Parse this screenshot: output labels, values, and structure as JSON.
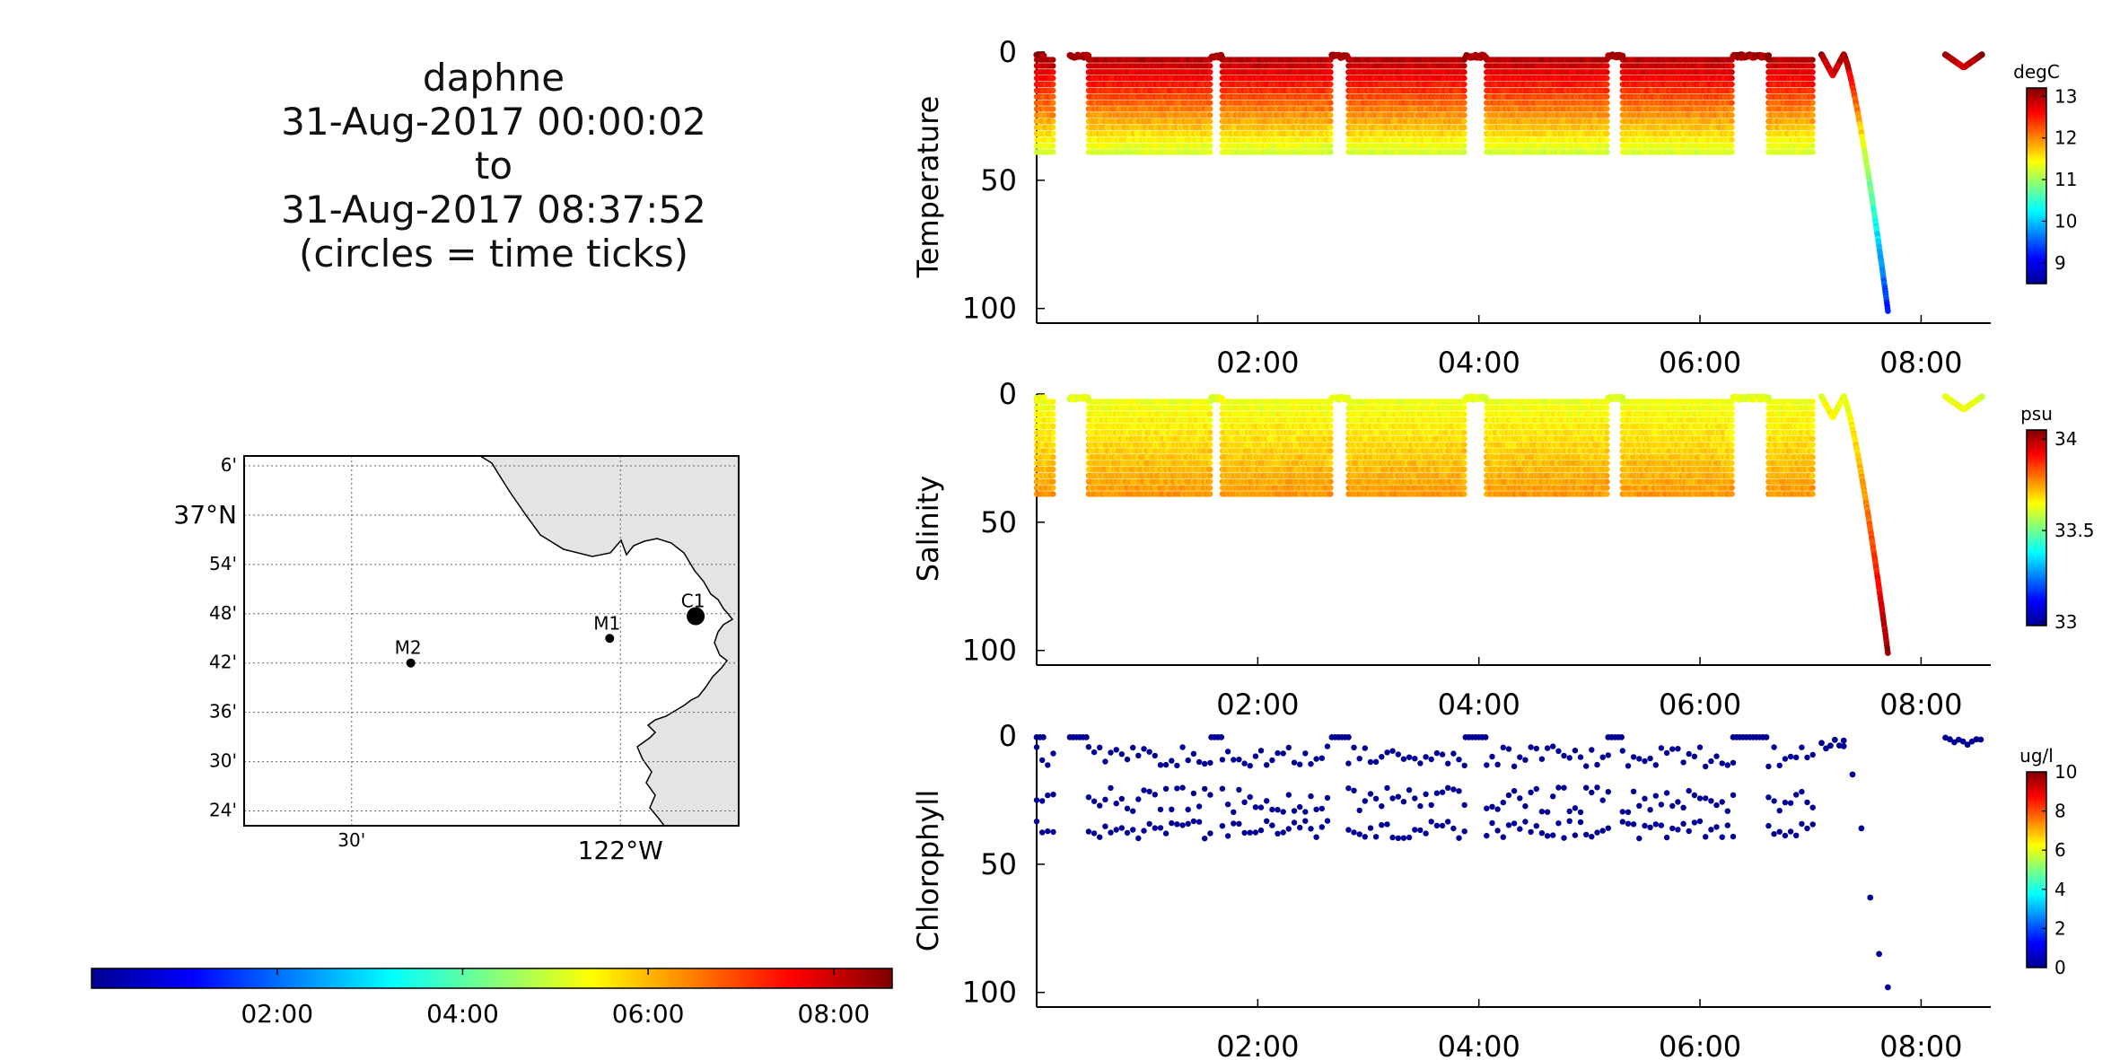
{
  "title": {
    "lines": [
      "daphne",
      "31-Aug-2017 00:00:02",
      "to",
      "31-Aug-2017 08:37:52",
      "(circles = time ticks)"
    ]
  },
  "map": {
    "lat_labels": [
      "6'",
      "37°N",
      "54'",
      "48'",
      "42'",
      "36'",
      "30'",
      "24'"
    ],
    "lat_values": [
      37.1,
      37.0,
      36.9,
      36.8,
      36.7,
      36.6,
      36.5,
      36.4
    ],
    "lon_labels": [
      "30'",
      "122°W"
    ],
    "lon_values": [
      -122.5,
      -122.0
    ],
    "lat_range": [
      36.37,
      37.12
    ],
    "lon_range": [
      -122.7,
      -121.78
    ],
    "stations": [
      {
        "name": "M2",
        "lon": -122.39,
        "lat": 36.7
      },
      {
        "name": "M1",
        "lon": -122.02,
        "lat": 36.75
      },
      {
        "name": "C1",
        "lon": -121.86,
        "lat": 36.795
      }
    ],
    "land_color": "#e4e4e4"
  },
  "time_colorbar": {
    "tick_labels": [
      "02:00",
      "04:00",
      "06:00",
      "08:00"
    ],
    "tick_hours": [
      2,
      4,
      6,
      8
    ],
    "range_hours": [
      0,
      8.63
    ]
  },
  "chart_data": [
    {
      "type": "scatter",
      "ylabel": "Temperature",
      "units": "degC",
      "x_range_hours": [
        0,
        8.63
      ],
      "x_tick_labels": [
        "02:00",
        "04:00",
        "06:00",
        "08:00"
      ],
      "x_tick_hours": [
        2,
        4,
        6,
        8
      ],
      "y_range": [
        105,
        0
      ],
      "y_ticks": [
        0,
        50,
        100
      ],
      "y_tick_labels": [
        "0",
        "50",
        "100"
      ],
      "colorbar_range": [
        8.5,
        13.2
      ],
      "colorbar_ticks": [
        9,
        10,
        11,
        12,
        13
      ],
      "colorbar_tick_labels": [
        "9",
        "10",
        "11",
        "12",
        "13"
      ],
      "profile": {
        "surface": 13.1,
        "bottom": 11.2,
        "deep": 9.2
      }
    },
    {
      "type": "scatter",
      "ylabel": "Salinity",
      "units": "psu",
      "x_range_hours": [
        0,
        8.63
      ],
      "x_tick_labels": [
        "02:00",
        "04:00",
        "06:00",
        "08:00"
      ],
      "x_tick_hours": [
        2,
        4,
        6,
        8
      ],
      "y_range": [
        105,
        0
      ],
      "y_ticks": [
        0,
        50,
        100
      ],
      "y_tick_labels": [
        "0",
        "50",
        "100"
      ],
      "colorbar_range": [
        32.98,
        34.05
      ],
      "colorbar_ticks": [
        33,
        33.5,
        34
      ],
      "colorbar_tick_labels": [
        "33",
        "33.5",
        "34"
      ],
      "profile": {
        "surface": 33.62,
        "bottom": 33.76,
        "deep": 34.03
      }
    },
    {
      "type": "scatter",
      "ylabel": "Chlorophyll",
      "units": "ug/l",
      "x_range_hours": [
        0,
        8.63
      ],
      "x_tick_labels": [
        "02:00",
        "04:00",
        "06:00",
        "08:00"
      ],
      "x_tick_hours": [
        2,
        4,
        6,
        8
      ],
      "y_range": [
        105,
        0
      ],
      "y_ticks": [
        0,
        50,
        100
      ],
      "y_tick_labels": [
        "0",
        "50",
        "100"
      ],
      "colorbar_range": [
        0,
        10
      ],
      "colorbar_ticks": [
        0,
        2,
        4,
        6,
        8,
        10
      ],
      "colorbar_tick_labels": [
        "0",
        "2",
        "4",
        "6",
        "8",
        "10"
      ],
      "profile": {
        "value": 0.2
      }
    }
  ],
  "yo_segments": [
    {
      "start": 0.0,
      "end": 0.16,
      "max_depth": 40,
      "dense": true
    },
    {
      "start": 0.47,
      "end": 1.58,
      "max_depth": 40,
      "dense": true
    },
    {
      "start": 1.68,
      "end": 2.67,
      "max_depth": 40,
      "dense": true
    },
    {
      "start": 2.82,
      "end": 3.88,
      "max_depth": 40,
      "dense": true
    },
    {
      "start": 4.07,
      "end": 5.17,
      "max_depth": 40,
      "dense": true
    },
    {
      "start": 5.3,
      "end": 6.3,
      "max_depth": 40,
      "dense": true
    },
    {
      "start": 6.62,
      "end": 7.03,
      "max_depth": 40,
      "dense": true
    }
  ],
  "surface_segments": [
    {
      "start": 0.0,
      "end": 0.07,
      "depth": 1
    },
    {
      "start": 0.3,
      "end": 0.47,
      "depth": 1
    },
    {
      "start": 1.58,
      "end": 1.68,
      "depth": 1
    },
    {
      "start": 2.67,
      "end": 2.82,
      "depth": 1
    },
    {
      "start": 3.88,
      "end": 4.07,
      "depth": 1
    },
    {
      "start": 5.17,
      "end": 5.3,
      "depth": 1
    },
    {
      "start": 6.3,
      "end": 6.62,
      "depth": 1
    }
  ],
  "surface_features": [
    {
      "start": 7.1,
      "end": 7.3,
      "dip": 8
    },
    {
      "start": 8.22,
      "end": 8.55,
      "dip": 5
    }
  ],
  "deep_dive": {
    "start": 7.3,
    "end": 7.7,
    "max_depth": 100
  }
}
